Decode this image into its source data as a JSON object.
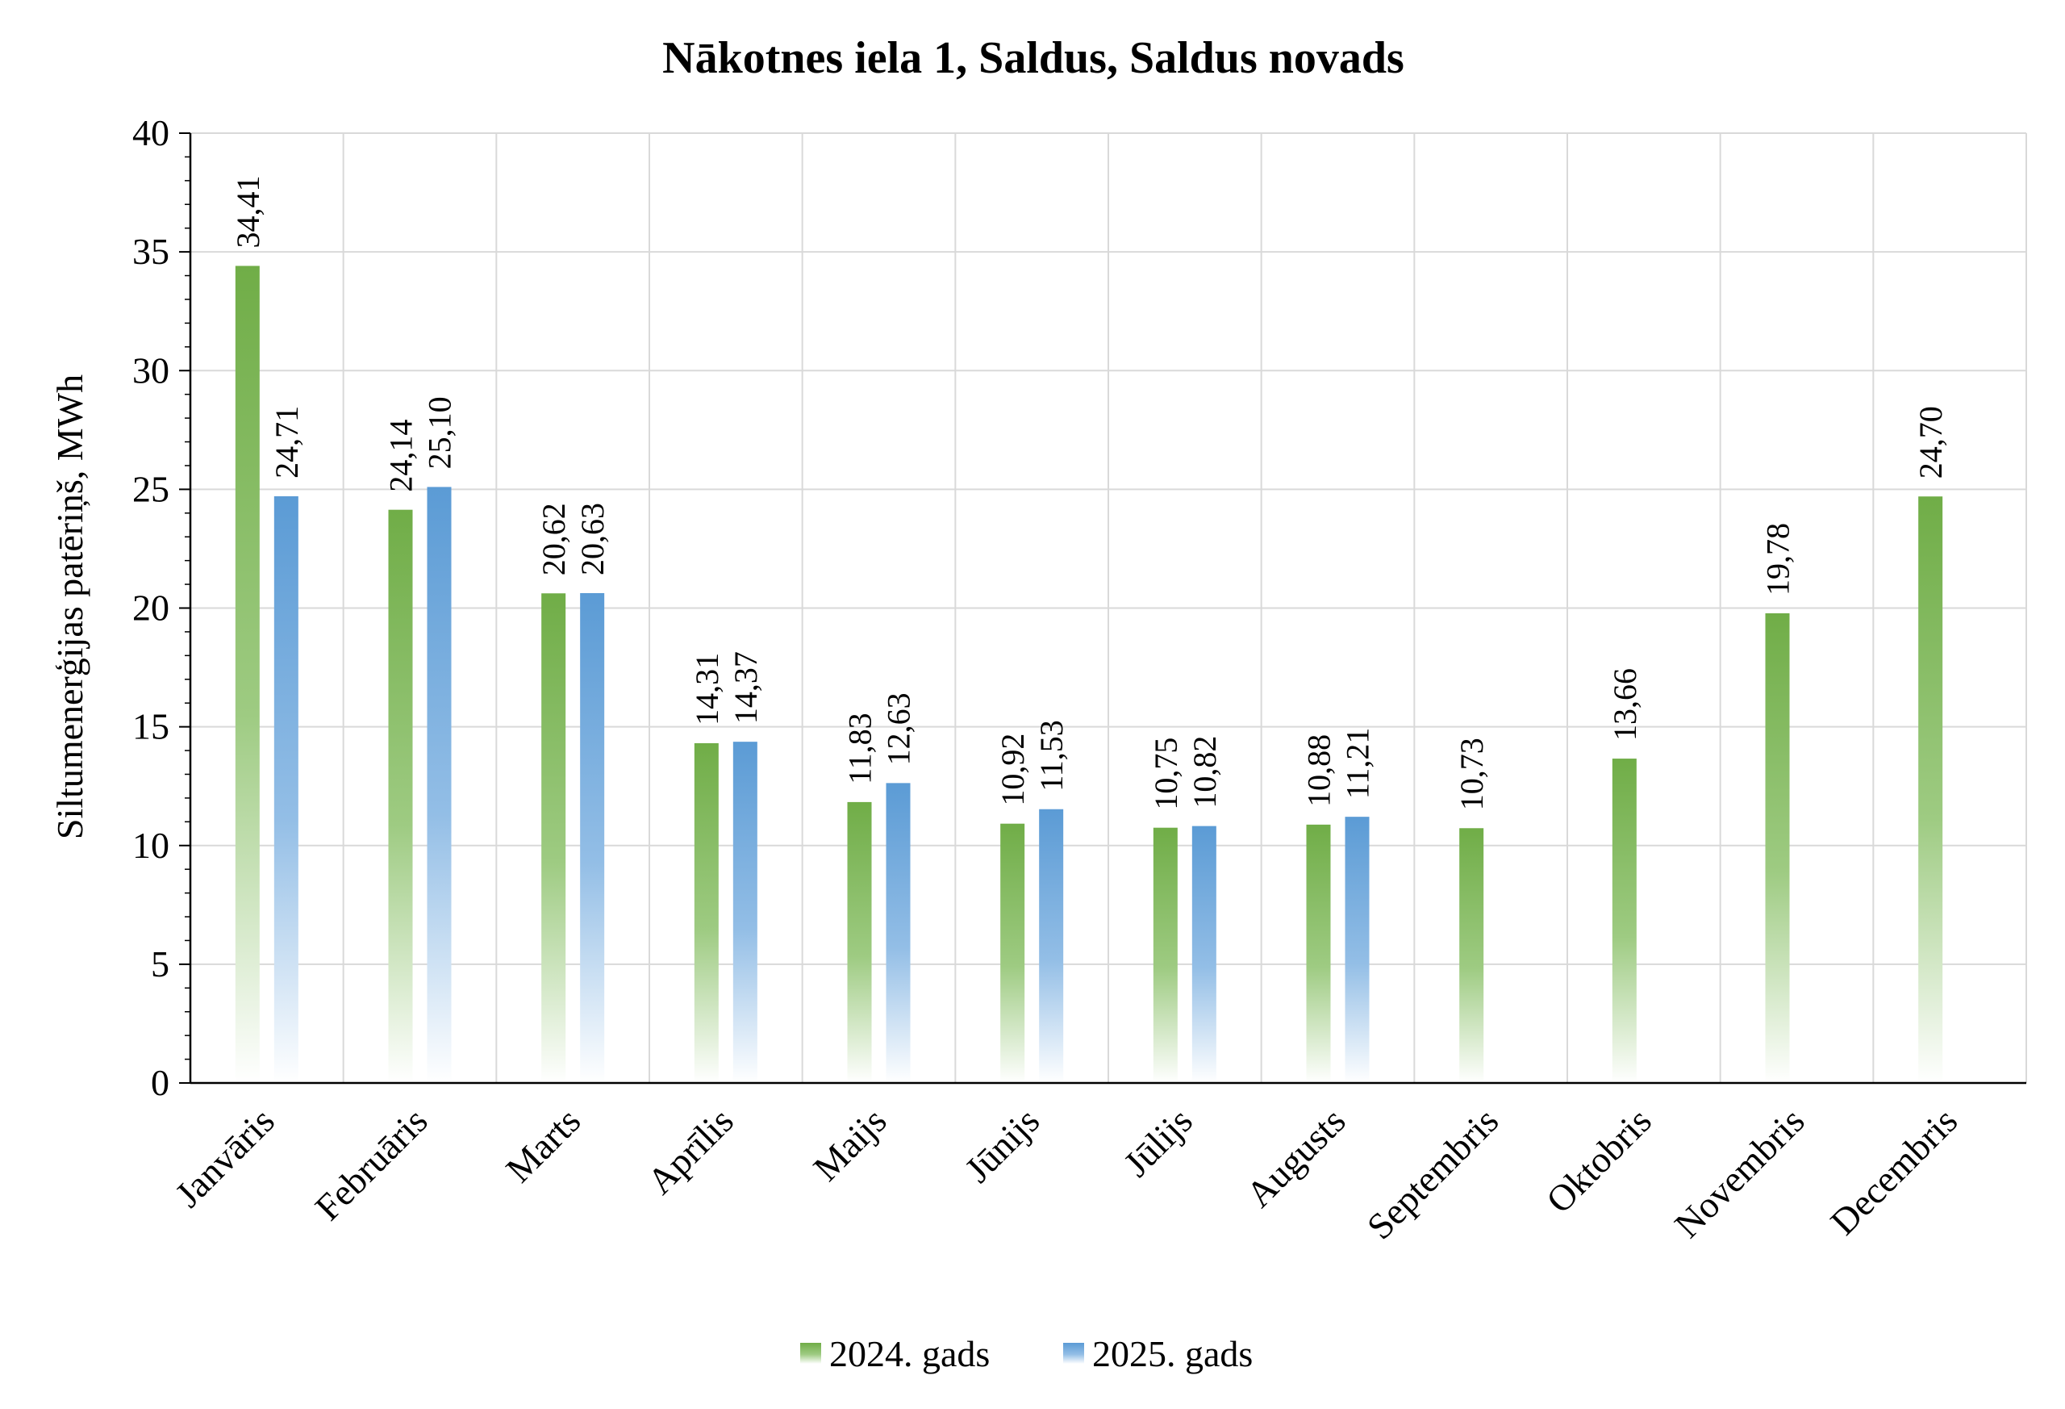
{
  "chart_data": {
    "type": "bar",
    "title": "Nākotnes iela 1, Saldus, Saldus novads",
    "ylabel": "Siltumenerģijas patēriņš, MWh",
    "xlabel": "",
    "ylim": [
      0,
      40
    ],
    "yticks": [
      0,
      5,
      10,
      15,
      20,
      25,
      30,
      35,
      40
    ],
    "grid": true,
    "legend_position": "bottom",
    "categories": [
      "Janvāris",
      "Februāris",
      "Marts",
      "Aprīlis",
      "Maijs",
      "Jūnijs",
      "Jūlijs",
      "Augusts",
      "Septembris",
      "Oktobris",
      "Novembris",
      "Decembris"
    ],
    "series": [
      {
        "name": "2024. gads",
        "color": "#70AD47",
        "values": [
          34.41,
          24.14,
          20.62,
          14.31,
          11.83,
          10.92,
          10.75,
          10.88,
          10.73,
          13.66,
          19.78,
          24.7
        ],
        "labels": [
          "34,41",
          "24,14",
          "20,62",
          "14,31",
          "11,83",
          "10,92",
          "10,75",
          "10,88",
          "10,73",
          "13,66",
          "19,78",
          "24,70"
        ]
      },
      {
        "name": "2025. gads",
        "color": "#5B9BD5",
        "values": [
          24.71,
          25.1,
          20.63,
          14.37,
          12.63,
          11.53,
          10.82,
          11.21,
          null,
          null,
          null,
          null
        ],
        "labels": [
          "24,71",
          "25,10",
          "20,63",
          "14,37",
          "12,63",
          "11,53",
          "10,82",
          "11,21",
          null,
          null,
          null,
          null
        ]
      }
    ]
  }
}
